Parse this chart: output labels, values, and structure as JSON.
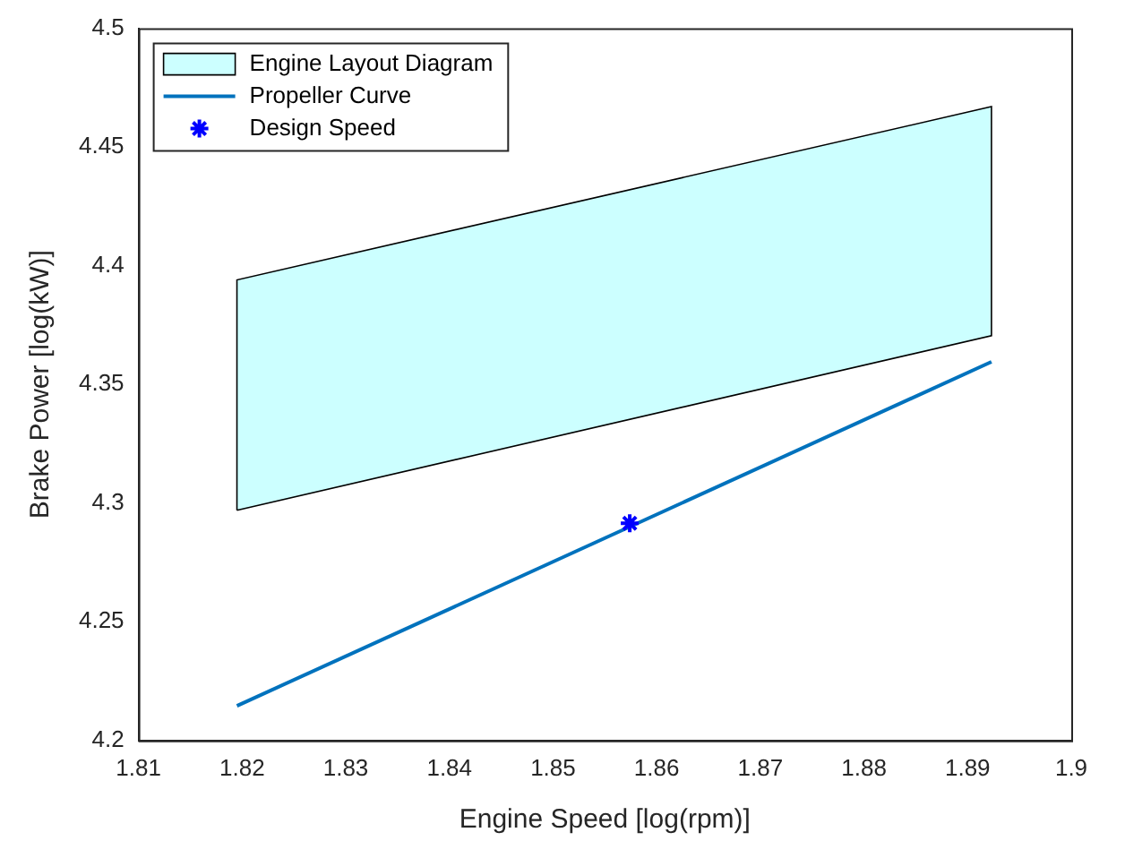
{
  "chart_data": {
    "type": "line",
    "xlabel": "Engine Speed [log(rpm)]",
    "ylabel": "Brake Power [log(kW)]",
    "xlim": [
      1.81,
      1.9
    ],
    "xticks": [
      1.81,
      1.82,
      1.83,
      1.84,
      1.85,
      1.86,
      1.87,
      1.88,
      1.89,
      1.9
    ],
    "ylim": [
      4.2,
      4.5
    ],
    "yticks": [
      4.2,
      4.25,
      4.3,
      4.35,
      4.4,
      4.45,
      4.5
    ],
    "grid": false,
    "legend": "top left",
    "series": [
      {
        "name": "Engine Layout Diagram",
        "type": "area",
        "color": "#ccffff",
        "x": [
          1.8195,
          1.8923,
          1.8923,
          1.8195,
          1.8195
        ],
        "values": [
          4.297,
          4.3705,
          4.467,
          4.394,
          4.297
        ]
      },
      {
        "name": "Propeller Curve",
        "type": "line",
        "color": "#0072bd",
        "x": [
          1.8195,
          1.8923
        ],
        "values": [
          4.2146,
          4.3595
        ]
      },
      {
        "name": "Design Speed",
        "type": "scatter",
        "color": "#0000ff",
        "marker": "cross",
        "x": [
          1.8574
        ],
        "values": [
          4.2915
        ]
      }
    ]
  }
}
